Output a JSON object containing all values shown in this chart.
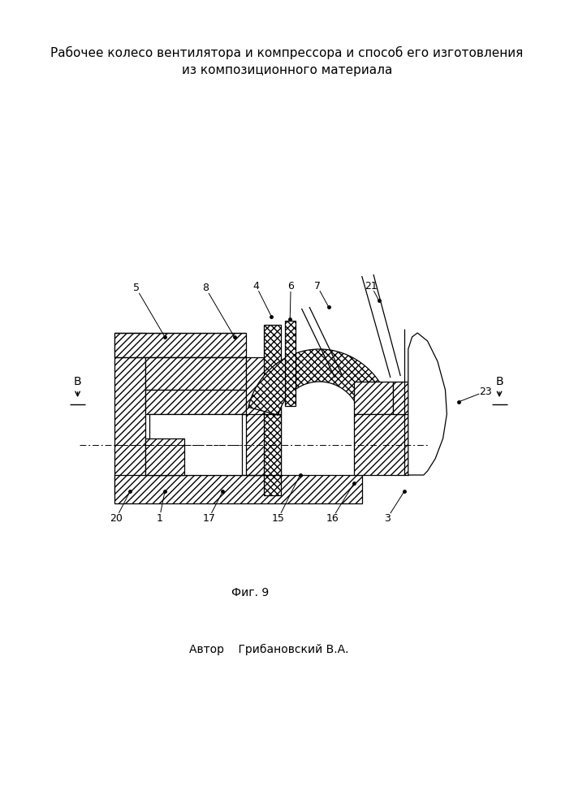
{
  "title_line1": "Рабочее колесо вентилятора и компрессора и способ его изготовления",
  "title_line2": "из композиционного материала",
  "fig_label": "Фиг. 9",
  "author_label": "Автор    Грибановский В.А.",
  "bg": "#ffffff",
  "lc": "#000000",
  "title_fontsize": 11,
  "label_fontsize": 9
}
